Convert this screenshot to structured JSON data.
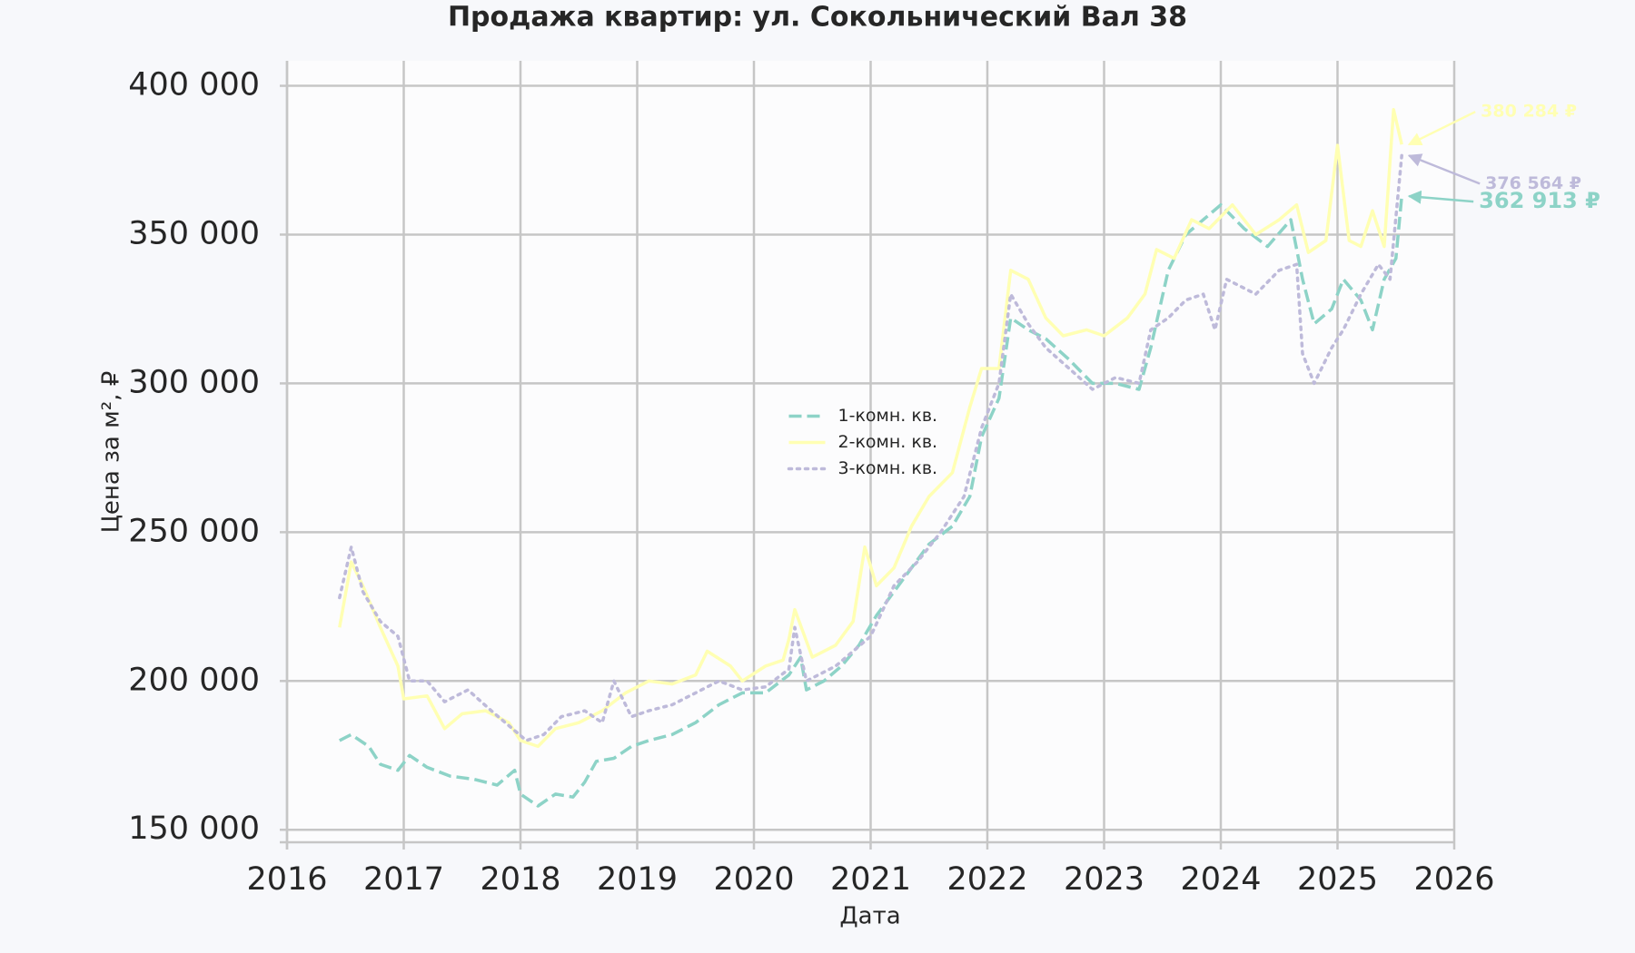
{
  "chart_data": {
    "type": "line",
    "title": "Продажа квартир: ул. Сокольнический Вал 38",
    "x_label": "Дата",
    "y_label": "Цена за м², ₽",
    "xlim": [
      2016,
      2026
    ],
    "xticks": [
      2016,
      2017,
      2018,
      2019,
      2020,
      2021,
      2022,
      2023,
      2024,
      2025,
      2026
    ],
    "ylim": [
      145800,
      408400
    ],
    "yticks": [
      {
        "value": 150000,
        "label": "150 000"
      },
      {
        "value": 200000,
        "label": "200 000"
      },
      {
        "value": 250000,
        "label": "250 000"
      },
      {
        "value": 300000,
        "label": "300 000"
      },
      {
        "value": 350000,
        "label": "350 000"
      },
      {
        "value": 400000,
        "label": "400 000"
      }
    ],
    "grid": true,
    "legend": "center",
    "series": [
      {
        "name": "1-комн. кв.",
        "color": "#8dd3c7",
        "linestyle": "dashed",
        "x": [
          2016.45,
          2016.55,
          2016.7,
          2016.8,
          2016.95,
          2017.05,
          2017.2,
          2017.4,
          2017.6,
          2017.8,
          2017.95,
          2018.0,
          2018.15,
          2018.3,
          2018.45,
          2018.55,
          2018.65,
          2018.8,
          2018.95,
          2019.1,
          2019.3,
          2019.5,
          2019.7,
          2019.9,
          2020.1,
          2020.3,
          2020.4,
          2020.45,
          2020.6,
          2020.75,
          2020.9,
          2021.05,
          2021.2,
          2021.35,
          2021.5,
          2021.7,
          2021.85,
          2021.95,
          2022.1,
          2022.2,
          2022.35,
          2022.5,
          2022.7,
          2022.9,
          2023.1,
          2023.3,
          2023.4,
          2023.55,
          2023.7,
          2023.85,
          2024.0,
          2024.2,
          2024.4,
          2024.6,
          2024.7,
          2024.8,
          2024.95,
          2025.05,
          2025.2,
          2025.3,
          2025.4,
          2025.5,
          2025.55
        ],
        "values": [
          180000,
          182000,
          178000,
          172000,
          170000,
          175000,
          171000,
          168000,
          167000,
          165000,
          170000,
          162000,
          158000,
          162000,
          161000,
          166000,
          173000,
          174000,
          178000,
          180000,
          182000,
          186000,
          192000,
          196000,
          196000,
          202000,
          208000,
          197000,
          200000,
          205000,
          212000,
          222000,
          230000,
          238000,
          246000,
          252000,
          262000,
          282000,
          295000,
          322000,
          318000,
          315000,
          308000,
          300000,
          300000,
          298000,
          312000,
          338000,
          350000,
          355000,
          360000,
          352000,
          346000,
          355000,
          335000,
          320000,
          325000,
          335000,
          328000,
          318000,
          335000,
          342000,
          362913
        ]
      },
      {
        "name": "2-комн. кв.",
        "color": "#ffffb3",
        "linestyle": "solid",
        "x": [
          2016.45,
          2016.55,
          2016.65,
          2016.8,
          2016.95,
          2017.0,
          2017.2,
          2017.35,
          2017.5,
          2017.7,
          2017.9,
          2018.0,
          2018.15,
          2018.3,
          2018.5,
          2018.7,
          2018.9,
          2019.1,
          2019.3,
          2019.5,
          2019.6,
          2019.8,
          2019.9,
          2020.1,
          2020.25,
          2020.3,
          2020.35,
          2020.5,
          2020.7,
          2020.85,
          2020.95,
          2021.05,
          2021.2,
          2021.35,
          2021.5,
          2021.7,
          2021.85,
          2021.95,
          2022.1,
          2022.2,
          2022.35,
          2022.5,
          2022.65,
          2022.85,
          2023.0,
          2023.2,
          2023.35,
          2023.45,
          2023.6,
          2023.75,
          2023.9,
          2024.1,
          2024.3,
          2024.5,
          2024.65,
          2024.75,
          2024.9,
          2025.0,
          2025.1,
          2025.2,
          2025.3,
          2025.4,
          2025.48,
          2025.55
        ],
        "values": [
          218000,
          240000,
          232000,
          218000,
          205000,
          194000,
          195000,
          184000,
          189000,
          190000,
          186000,
          180000,
          178000,
          184000,
          186000,
          190000,
          196000,
          200000,
          199000,
          202000,
          210000,
          205000,
          200000,
          205000,
          207000,
          214000,
          224000,
          208000,
          212000,
          220000,
          245000,
          232000,
          238000,
          252000,
          262000,
          270000,
          292000,
          305000,
          305000,
          338000,
          335000,
          322000,
          316000,
          318000,
          316000,
          322000,
          330000,
          345000,
          342000,
          355000,
          352000,
          360000,
          350000,
          355000,
          360000,
          344000,
          348000,
          380000,
          348000,
          346000,
          358000,
          346000,
          392000,
          380284
        ]
      },
      {
        "name": "3-комн. кв.",
        "color": "#bebada",
        "linestyle": "dotted",
        "x": [
          2016.45,
          2016.55,
          2016.65,
          2016.8,
          2016.95,
          2017.05,
          2017.2,
          2017.35,
          2017.55,
          2017.75,
          2017.9,
          2018.05,
          2018.2,
          2018.35,
          2018.55,
          2018.7,
          2018.8,
          2018.95,
          2019.1,
          2019.3,
          2019.5,
          2019.7,
          2019.9,
          2020.1,
          2020.3,
          2020.35,
          2020.45,
          2020.7,
          2020.85,
          2021.0,
          2021.2,
          2021.4,
          2021.6,
          2021.8,
          2021.95,
          2022.1,
          2022.2,
          2022.35,
          2022.5,
          2022.7,
          2022.9,
          2023.1,
          2023.3,
          2023.4,
          2023.55,
          2023.7,
          2023.85,
          2023.95,
          2024.05,
          2024.3,
          2024.5,
          2024.65,
          2024.7,
          2024.8,
          2024.95,
          2025.05,
          2025.2,
          2025.35,
          2025.45,
          2025.55
        ],
        "values": [
          228000,
          245000,
          230000,
          220000,
          215000,
          200000,
          200000,
          193000,
          197000,
          190000,
          185000,
          180000,
          182000,
          188000,
          190000,
          186000,
          200000,
          188000,
          190000,
          192000,
          196000,
          200000,
          197000,
          198000,
          204000,
          218000,
          200000,
          205000,
          210000,
          215000,
          232000,
          240000,
          250000,
          262000,
          285000,
          300000,
          330000,
          320000,
          312000,
          305000,
          298000,
          302000,
          300000,
          318000,
          322000,
          328000,
          330000,
          318000,
          335000,
          330000,
          338000,
          340000,
          310000,
          300000,
          312000,
          318000,
          330000,
          340000,
          335000,
          376564
        ]
      }
    ],
    "annotations": [
      {
        "text": "380 284 ₽",
        "value": 380284,
        "x": 2025.55,
        "color": "#ffffb3"
      },
      {
        "text": "376 564 ₽",
        "value": 376564,
        "x": 2025.55,
        "color": "#bebada"
      },
      {
        "text": "362 913 ₽",
        "value": 362913,
        "x": 2025.55,
        "color": "#8dd3c7"
      }
    ]
  }
}
